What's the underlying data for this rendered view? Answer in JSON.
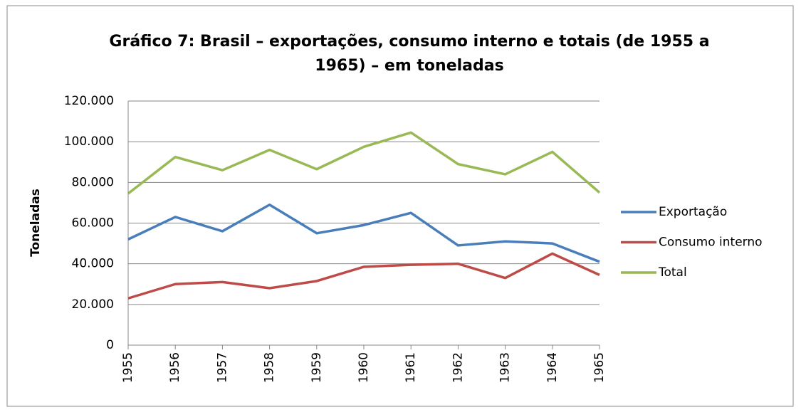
{
  "chart_data": {
    "type": "line",
    "title": "Gráfico 7: Brasil – exportações, consumo interno e totais (de 1955 a 1965) – em toneladas",
    "y_label": "Toneladas",
    "categories": [
      "1955",
      "1956",
      "1957",
      "1958",
      "1959",
      "1960",
      "1961",
      "1962",
      "1963",
      "1964",
      "1965"
    ],
    "series": [
      {
        "name": "Exportação",
        "color": "#4a7ebb",
        "values": [
          52000,
          63000,
          56000,
          69000,
          55000,
          59000,
          65000,
          49000,
          51000,
          50000,
          41000
        ]
      },
      {
        "name": "Consumo interno",
        "color": "#be4b48",
        "values": [
          23000,
          30000,
          31000,
          28000,
          31500,
          38500,
          39500,
          40000,
          33000,
          45000,
          34500
        ]
      },
      {
        "name": "Total",
        "color": "#98b954",
        "values": [
          74500,
          92500,
          86000,
          96000,
          86500,
          97500,
          104500,
          89000,
          84000,
          95000,
          75000
        ]
      }
    ],
    "ylim": [
      0,
      120000
    ],
    "yticks": [
      0,
      {
        "value": 20000,
        "label": "20.000"
      },
      {
        "value": 40000,
        "label": "40.000"
      },
      {
        "value": 60000,
        "label": "60.000"
      },
      {
        "value": 80000,
        "label": "80.000"
      },
      {
        "value": 100000,
        "label": "100.000"
      },
      {
        "value": 120000,
        "label": "120.000"
      }
    ],
    "grid": true,
    "legend": "right"
  }
}
